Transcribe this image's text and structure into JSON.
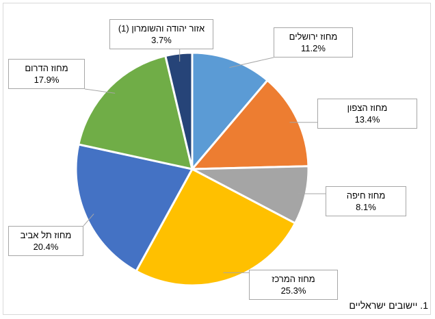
{
  "chart_data": {
    "type": "pie",
    "start_angle_deg": 0,
    "direction": "clockwise",
    "slices": [
      {
        "label": "מחוז ירושלים",
        "value": 11.2,
        "display": "11.2%",
        "color": "#5b9bd5"
      },
      {
        "label": "מחוז הצפון",
        "value": 13.4,
        "display": "13.4%",
        "color": "#ed7d31"
      },
      {
        "label": "מחוז חיפה",
        "value": 8.1,
        "display": "8.1%",
        "color": "#a5a5a5"
      },
      {
        "label": "מחוז המרכז",
        "value": 25.3,
        "display": "25.3%",
        "color": "#ffc000"
      },
      {
        "label": "מחוז תל אביב",
        "value": 20.4,
        "display": "20.4%",
        "color": "#4472c4"
      },
      {
        "label": "מחוז הדרום",
        "value": 17.9,
        "display": "17.9%",
        "color": "#70ad47"
      },
      {
        "label": "אזור יהודה והשומרון (1)",
        "value": 3.7,
        "display": "3.7%",
        "color": "#264478"
      }
    ]
  },
  "footnote": "1. יישובים ישראליים"
}
